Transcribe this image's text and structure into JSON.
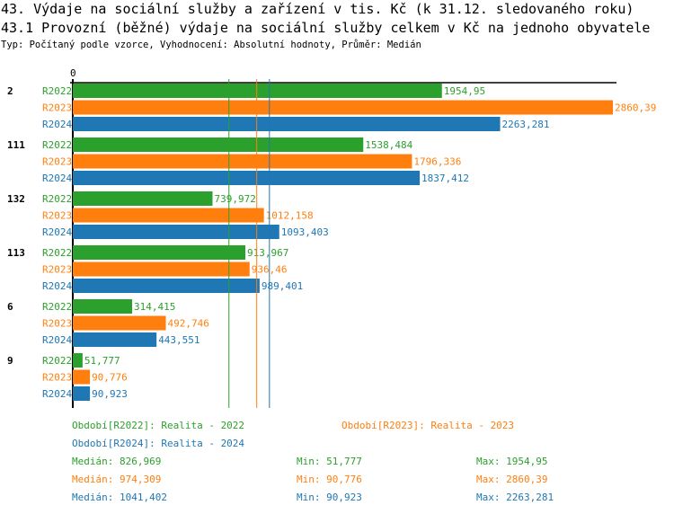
{
  "title": "43. Výdaje na sociální služby a zařízení v tis. Kč (k 31.12. sledovaného roku)",
  "subtitle": "43.1 Provozní (běžné) výdaje na sociální služby celkem v Kč na jednoho obyvatele",
  "info": "Typ: Počítaný podle vzorce, Vyhodnocení: Absolutní hodnoty, Průměr: Medián",
  "chart_data": {
    "type": "bar",
    "orientation": "horizontal",
    "xlim": [
      0,
      2860.39
    ],
    "x_tick_labels": [
      "0"
    ],
    "categories": [
      "2",
      "111",
      "132",
      "113",
      "6",
      "9"
    ],
    "series": [
      {
        "name": "R2022",
        "color": "#2ca02c",
        "values": [
          1954.95,
          1538.484,
          739.972,
          913.967,
          314.415,
          51.777
        ],
        "labels": [
          "1954,95",
          "1538,484",
          "739,972",
          "913,967",
          "314,415",
          "51,777"
        ]
      },
      {
        "name": "R2023",
        "color": "#ff7f0e",
        "values": [
          2860.39,
          1796.336,
          1012.158,
          936.46,
          492.746,
          90.776
        ],
        "labels": [
          "2860,39",
          "1796,336",
          "1012,158",
          "936,46",
          "492,746",
          "90,776"
        ]
      },
      {
        "name": "R2024",
        "color": "#1f77b4",
        "values": [
          2263.281,
          1837.412,
          1093.403,
          989.401,
          443.551,
          90.923
        ],
        "labels": [
          "2263,281",
          "1837,412",
          "1093,403",
          "989,401",
          "443,551",
          "90,923"
        ]
      }
    ],
    "medians": [
      826.969,
      974.309,
      1041.402
    ],
    "legend": [
      "Období[R2022]: Realita - 2022",
      "Období[R2023]: Realita - 2023",
      "Období[R2024]: Realita - 2024"
    ],
    "stats": [
      {
        "median": "Medián: 826,969",
        "min": "Min: 51,777",
        "max": "Max: 1954,95"
      },
      {
        "median": "Medián: 974,309",
        "min": "Min: 90,776",
        "max": "Max: 2860,39"
      },
      {
        "median": "Medián: 1041,402",
        "min": "Min: 90,923",
        "max": "Max: 2263,281"
      }
    ]
  }
}
